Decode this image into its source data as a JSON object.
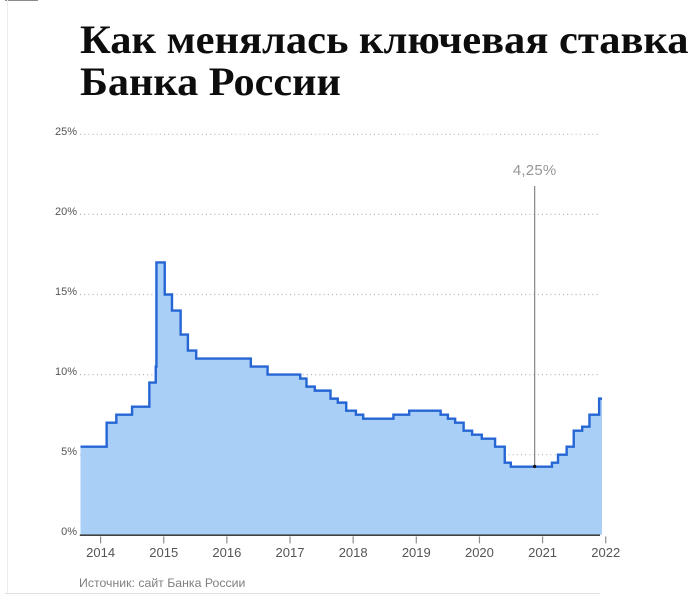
{
  "page": {
    "title_line1": "Как менялась ключевая ставка",
    "title_line2": "Банка России",
    "source_note": "Источник: сайт Банка России"
  },
  "chart_data": {
    "type": "area",
    "subtype": "step",
    "title": "Как менялась ключевая ставка Банка России",
    "series_name": "Ключевая ставка Банка России",
    "unit": "%",
    "ylim": [
      0,
      25
    ],
    "y_ticks": [
      "0%",
      "5%",
      "10%",
      "15%",
      "20%",
      "25%"
    ],
    "y_tick_values": [
      0,
      5,
      10,
      15,
      20,
      25
    ],
    "x_ticks": [
      "2014",
      "2015",
      "2016",
      "2017",
      "2018",
      "2019",
      "2020",
      "2021",
      "2022"
    ],
    "grid": "horizontal-dotted",
    "legend": "none",
    "annotation": {
      "label": "4,25%",
      "value": 4.25,
      "date": "2020-12-12"
    },
    "source": "Источник: сайт Банка России",
    "colors": {
      "fill": "#aacff7",
      "stroke": "#2566d4",
      "grid": "#b5b5b5",
      "axis": "#424242"
    },
    "series": [
      {
        "date": "2013-09-13",
        "rate": 5.5
      },
      {
        "date": "2014-03-03",
        "rate": 7.0
      },
      {
        "date": "2014-04-28",
        "rate": 7.5
      },
      {
        "date": "2014-07-28",
        "rate": 8.0
      },
      {
        "date": "2014-11-05",
        "rate": 9.5
      },
      {
        "date": "2014-12-12",
        "rate": 10.5
      },
      {
        "date": "2014-12-16",
        "rate": 17.0
      },
      {
        "date": "2015-02-02",
        "rate": 15.0
      },
      {
        "date": "2015-03-16",
        "rate": 14.0
      },
      {
        "date": "2015-05-05",
        "rate": 12.5
      },
      {
        "date": "2015-06-16",
        "rate": 11.5
      },
      {
        "date": "2015-08-03",
        "rate": 11.0
      },
      {
        "date": "2016-06-14",
        "rate": 10.5
      },
      {
        "date": "2016-09-19",
        "rate": 10.0
      },
      {
        "date": "2017-03-27",
        "rate": 9.75
      },
      {
        "date": "2017-05-02",
        "rate": 9.25
      },
      {
        "date": "2017-06-19",
        "rate": 9.0
      },
      {
        "date": "2017-09-18",
        "rate": 8.5
      },
      {
        "date": "2017-10-30",
        "rate": 8.25
      },
      {
        "date": "2017-12-18",
        "rate": 7.75
      },
      {
        "date": "2018-02-12",
        "rate": 7.5
      },
      {
        "date": "2018-03-26",
        "rate": 7.25
      },
      {
        "date": "2018-09-17",
        "rate": 7.5
      },
      {
        "date": "2018-12-17",
        "rate": 7.75
      },
      {
        "date": "2019-06-17",
        "rate": 7.5
      },
      {
        "date": "2019-07-29",
        "rate": 7.25
      },
      {
        "date": "2019-09-09",
        "rate": 7.0
      },
      {
        "date": "2019-10-28",
        "rate": 6.5
      },
      {
        "date": "2019-12-16",
        "rate": 6.25
      },
      {
        "date": "2020-02-10",
        "rate": 6.0
      },
      {
        "date": "2020-04-27",
        "rate": 5.5
      },
      {
        "date": "2020-06-22",
        "rate": 4.5
      },
      {
        "date": "2020-07-27",
        "rate": 4.25
      },
      {
        "date": "2021-03-22",
        "rate": 4.5
      },
      {
        "date": "2021-04-26",
        "rate": 5.0
      },
      {
        "date": "2021-06-15",
        "rate": 5.5
      },
      {
        "date": "2021-07-26",
        "rate": 6.5
      },
      {
        "date": "2021-09-13",
        "rate": 6.75
      },
      {
        "date": "2021-10-25",
        "rate": 7.5
      },
      {
        "date": "2021-12-20",
        "rate": 8.5
      }
    ]
  }
}
